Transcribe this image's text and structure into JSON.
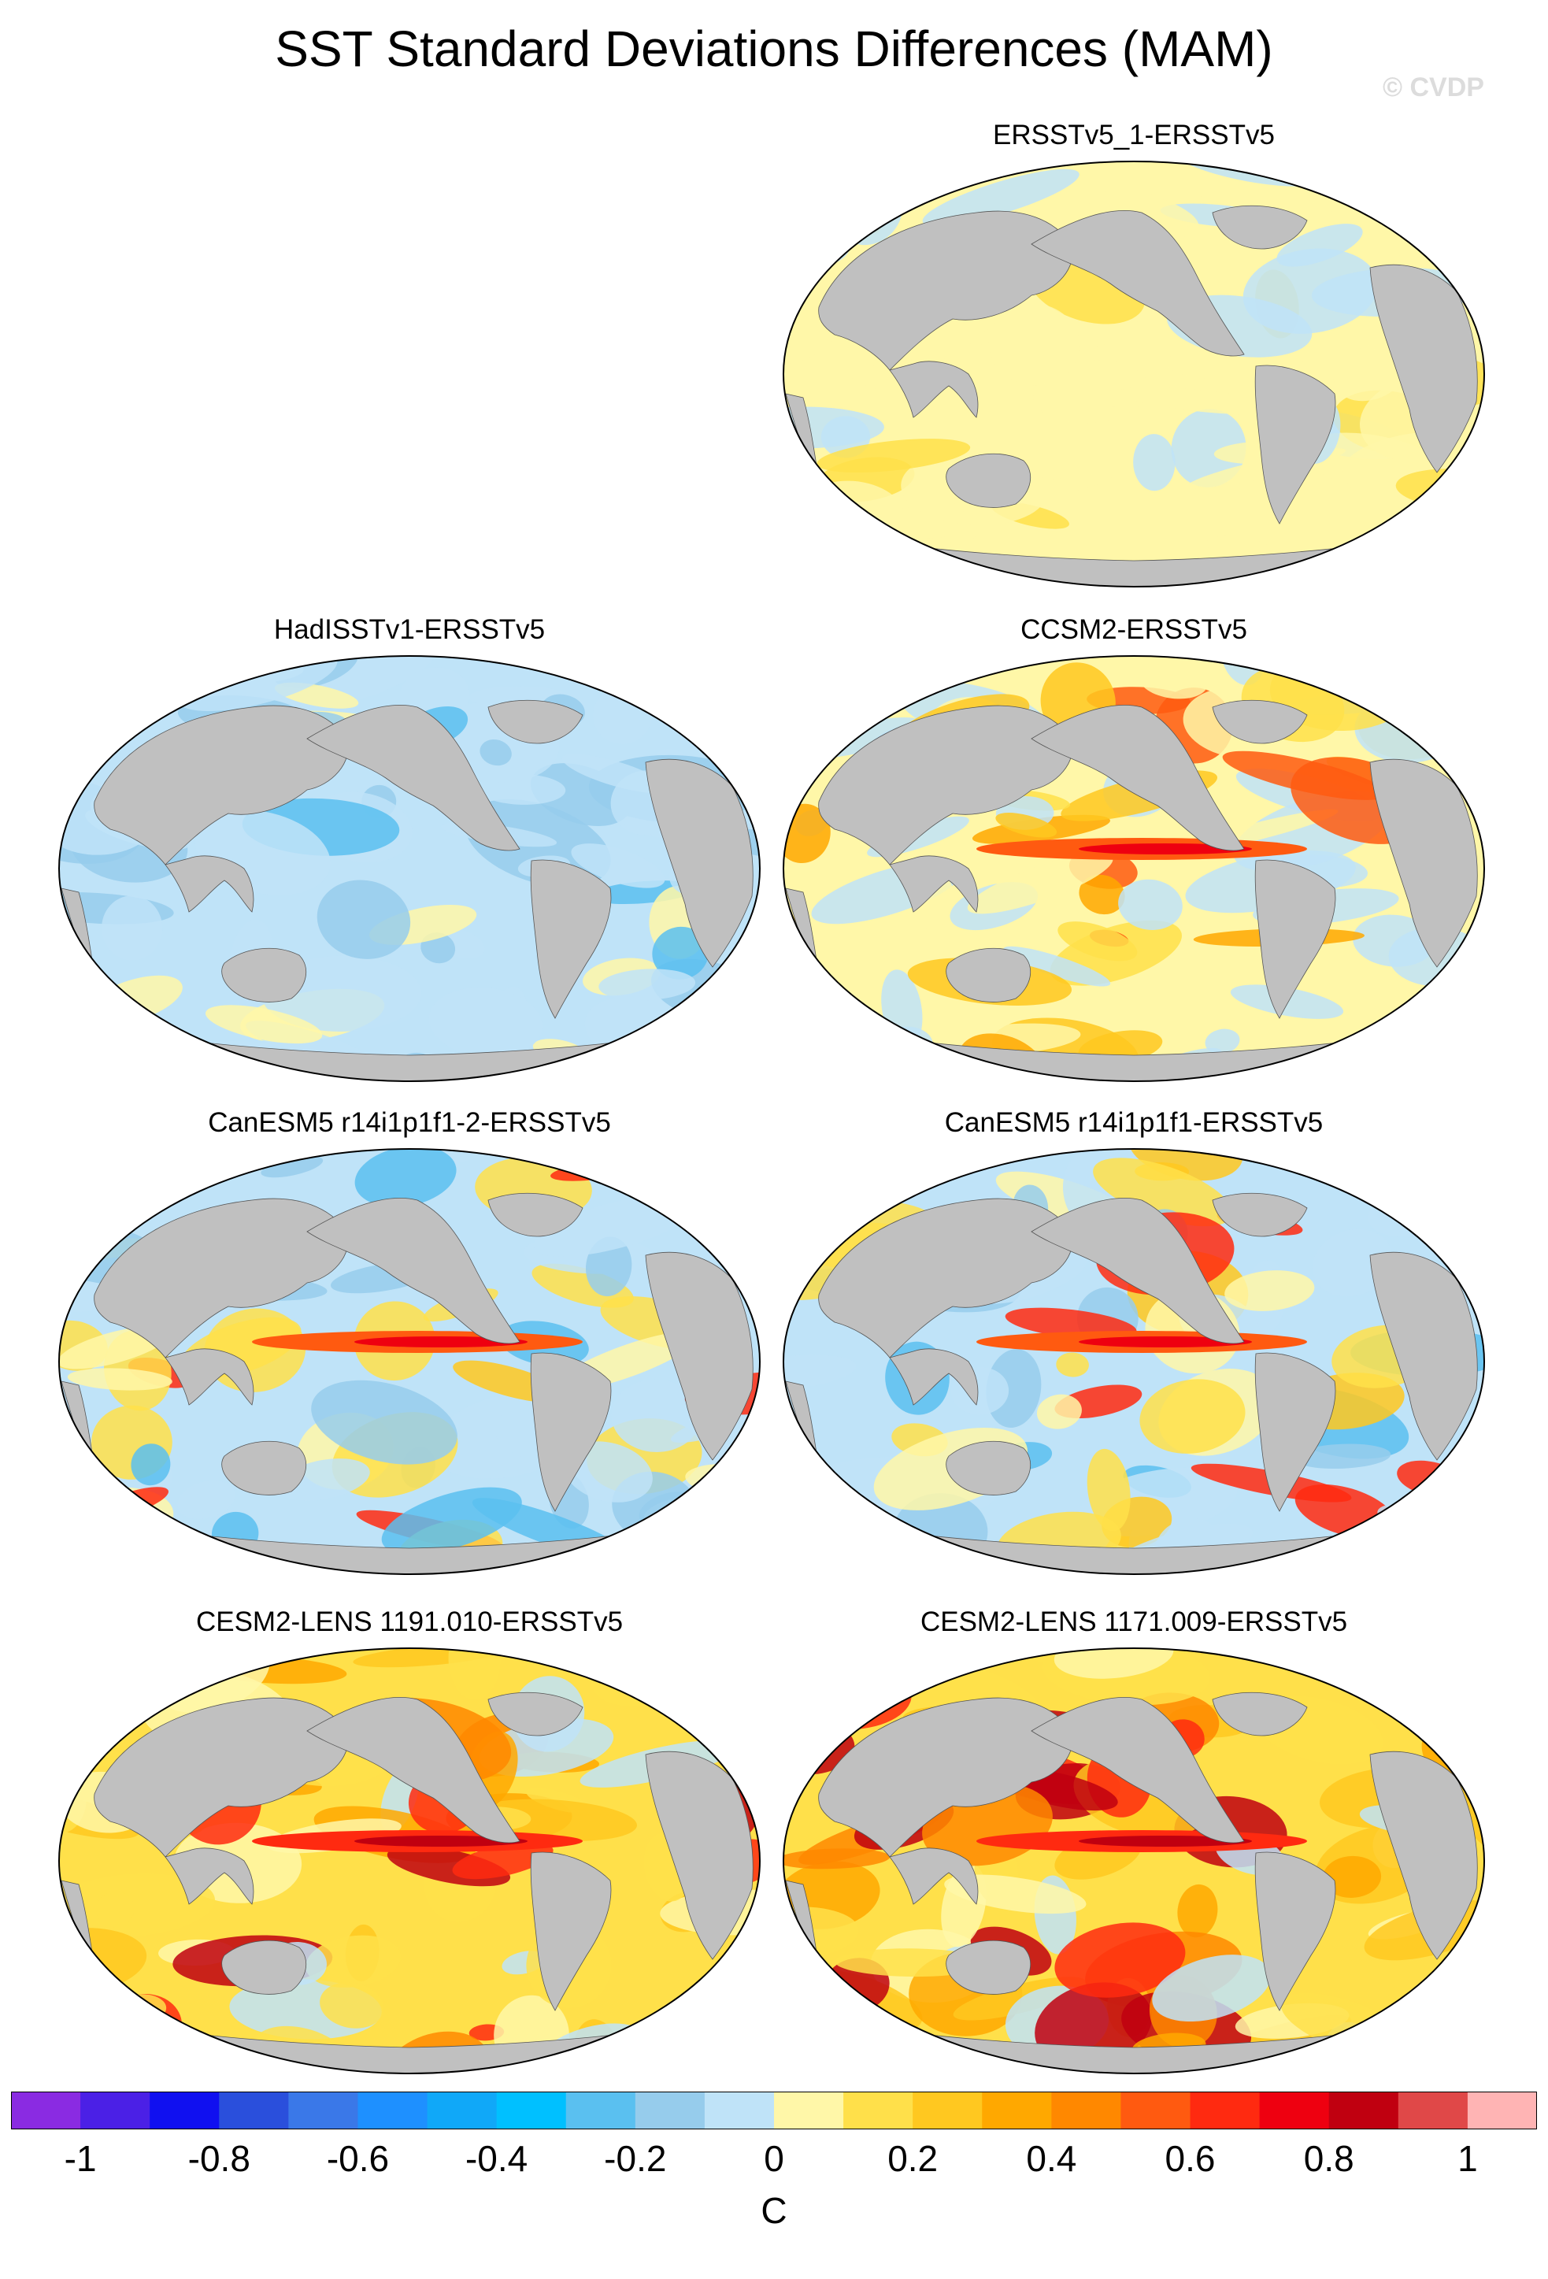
{
  "title": "SST Standard Deviations Differences (MAM)",
  "copyright": "© CVDP",
  "land_color": "#c0c0c0",
  "panels": [
    {
      "id": "p1",
      "title": "ERSSTv5_1-ERSSTv5",
      "pattern": "near-zero"
    },
    {
      "id": "p2",
      "title": "HadISSTv1-ERSSTv5",
      "pattern": "negative"
    },
    {
      "id": "p3",
      "title": "CCSM2-ERSSTv5",
      "pattern": "mixed-warm"
    },
    {
      "id": "p4",
      "title": "CanESM5 r14i1p1f1-2-ERSSTv5",
      "pattern": "mixed"
    },
    {
      "id": "p5",
      "title": "CanESM5 r14i1p1f1-ERSSTv5",
      "pattern": "mixed"
    },
    {
      "id": "p6",
      "title": "CESM2-LENS 1191.010-ERSSTv5",
      "pattern": "warm"
    },
    {
      "id": "p7",
      "title": "CESM2-LENS 1171.009-ERSSTv5",
      "pattern": "warm"
    }
  ],
  "colorbar": {
    "unit": "C",
    "colors": [
      "#8a2be2",
      "#4b20e6",
      "#1010f0",
      "#2a4fdc",
      "#3a78e8",
      "#1e90ff",
      "#10a8f8",
      "#00c0ff",
      "#5ac0f0",
      "#96ccec",
      "#bfe3f8",
      "#fff7a8",
      "#ffe04a",
      "#ffc820",
      "#ffa800",
      "#ff8800",
      "#ff5a10",
      "#ff2a10",
      "#ee0010",
      "#c00010",
      "#e04848",
      "#ffb4b4"
    ],
    "tick_labels": [
      "-1",
      "-0.8",
      "-0.6",
      "-0.4",
      "-0.2",
      "0",
      "0.2",
      "0.4",
      "0.6",
      "0.8",
      "1"
    ]
  }
}
